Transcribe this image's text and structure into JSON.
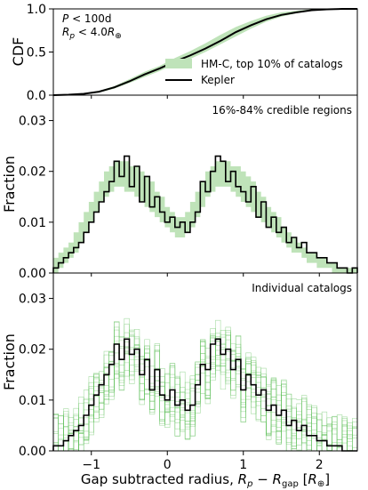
{
  "chart_data": [
    {
      "type": "line",
      "panel": "cdf",
      "ylabel": "CDF",
      "ylim": [
        0,
        1
      ],
      "yticks": [
        "0.0",
        "0.5",
        "1.0"
      ],
      "annotation_lines": [
        "P < 100d",
        "Rp < 4.0R⊕"
      ],
      "legend": {
        "position": "lower-right",
        "entries": [
          "HM-C, top 10% of catalogs",
          "Kepler"
        ]
      },
      "series": [
        {
          "name": "Kepler",
          "x": [
            -1.5,
            -1.3,
            -1.1,
            -0.9,
            -0.7,
            -0.5,
            -0.3,
            -0.1,
            0.0,
            0.1,
            0.3,
            0.5,
            0.7,
            0.9,
            1.1,
            1.3,
            1.5,
            1.7,
            1.9,
            2.1,
            2.3,
            2.5
          ],
          "y": [
            0.0,
            0.005,
            0.015,
            0.04,
            0.09,
            0.16,
            0.24,
            0.31,
            0.35,
            0.39,
            0.46,
            0.54,
            0.63,
            0.73,
            0.81,
            0.88,
            0.93,
            0.96,
            0.985,
            0.995,
            1.0,
            1.0
          ]
        },
        {
          "name": "HM-C, top 10% of catalogs",
          "band": true,
          "x": [
            -1.5,
            -1.3,
            -1.1,
            -0.9,
            -0.7,
            -0.5,
            -0.3,
            -0.1,
            0.0,
            0.1,
            0.3,
            0.5,
            0.7,
            0.9,
            1.1,
            1.3,
            1.5,
            1.7,
            1.9,
            2.1,
            2.3,
            2.5
          ],
          "lower": [
            0.0,
            0.002,
            0.01,
            0.03,
            0.075,
            0.14,
            0.21,
            0.28,
            0.32,
            0.35,
            0.42,
            0.5,
            0.59,
            0.68,
            0.77,
            0.85,
            0.91,
            0.95,
            0.98,
            0.99,
            1.0,
            1.0
          ],
          "upper": [
            0.0,
            0.008,
            0.022,
            0.05,
            0.105,
            0.185,
            0.27,
            0.34,
            0.385,
            0.43,
            0.51,
            0.6,
            0.7,
            0.79,
            0.86,
            0.92,
            0.96,
            0.98,
            0.995,
            1.0,
            1.0,
            1.0
          ]
        }
      ]
    },
    {
      "type": "area",
      "panel": "credible",
      "ylabel": "Fraction",
      "ylim": [
        0,
        0.035
      ],
      "yticks": [
        "0.00",
        "0.01",
        "0.02",
        "0.03"
      ],
      "annotation": "16%-84% credible regions",
      "kepler_bins": [
        0.001,
        0.002,
        0.003,
        0.004,
        0.005,
        0.006,
        0.008,
        0.01,
        0.012,
        0.014,
        0.016,
        0.018,
        0.022,
        0.019,
        0.023,
        0.017,
        0.021,
        0.014,
        0.019,
        0.013,
        0.015,
        0.012,
        0.01,
        0.011,
        0.009,
        0.01,
        0.008,
        0.01,
        0.012,
        0.018,
        0.016,
        0.02,
        0.023,
        0.022,
        0.018,
        0.02,
        0.017,
        0.016,
        0.014,
        0.017,
        0.011,
        0.014,
        0.009,
        0.011,
        0.008,
        0.009,
        0.006,
        0.007,
        0.005,
        0.006,
        0.004,
        0.004,
        0.003,
        0.003,
        0.002,
        0.002,
        0.001,
        0.001,
        0.0,
        0.001
      ],
      "band_lower": [
        0.0,
        0.001,
        0.002,
        0.003,
        0.004,
        0.006,
        0.008,
        0.01,
        0.012,
        0.014,
        0.015,
        0.016,
        0.017,
        0.017,
        0.016,
        0.016,
        0.015,
        0.014,
        0.013,
        0.012,
        0.011,
        0.01,
        0.009,
        0.008,
        0.007,
        0.007,
        0.008,
        0.009,
        0.011,
        0.013,
        0.015,
        0.016,
        0.017,
        0.017,
        0.017,
        0.016,
        0.015,
        0.014,
        0.013,
        0.012,
        0.011,
        0.01,
        0.009,
        0.008,
        0.007,
        0.006,
        0.005,
        0.004,
        0.004,
        0.003,
        0.002,
        0.002,
        0.001,
        0.001,
        0.001,
        0.0,
        0.0,
        0.0,
        0.0,
        0.0
      ],
      "band_upper": [
        0.003,
        0.004,
        0.005,
        0.006,
        0.008,
        0.01,
        0.012,
        0.014,
        0.016,
        0.018,
        0.02,
        0.021,
        0.022,
        0.022,
        0.022,
        0.021,
        0.021,
        0.02,
        0.019,
        0.018,
        0.016,
        0.015,
        0.013,
        0.012,
        0.011,
        0.011,
        0.012,
        0.014,
        0.016,
        0.018,
        0.02,
        0.021,
        0.022,
        0.022,
        0.022,
        0.021,
        0.021,
        0.02,
        0.019,
        0.018,
        0.016,
        0.015,
        0.013,
        0.012,
        0.011,
        0.009,
        0.008,
        0.007,
        0.006,
        0.005,
        0.004,
        0.004,
        0.003,
        0.003,
        0.002,
        0.002,
        0.001,
        0.001,
        0.001,
        0.001
      ]
    },
    {
      "type": "line",
      "panel": "catalogs",
      "ylabel": "Fraction",
      "xlabel": "Gap subtracted radius, Rp − Rgap [R⊕]",
      "xlim": [
        -1.5,
        2.5
      ],
      "ylim": [
        0,
        0.035
      ],
      "xticks": [
        "−1",
        "0",
        "1",
        "2"
      ],
      "yticks": [
        "0.00",
        "0.01",
        "0.02",
        "0.03"
      ],
      "annotation": "Individual catalogs",
      "catalog_count": 16,
      "kepler_bins": [
        0.001,
        0.001,
        0.002,
        0.003,
        0.004,
        0.005,
        0.007,
        0.009,
        0.011,
        0.013,
        0.015,
        0.017,
        0.021,
        0.018,
        0.022,
        0.019,
        0.02,
        0.015,
        0.018,
        0.012,
        0.016,
        0.011,
        0.01,
        0.012,
        0.009,
        0.01,
        0.008,
        0.009,
        0.013,
        0.017,
        0.016,
        0.021,
        0.022,
        0.019,
        0.02,
        0.016,
        0.018,
        0.012,
        0.015,
        0.013,
        0.011,
        0.012,
        0.008,
        0.009,
        0.007,
        0.008,
        0.005,
        0.006,
        0.004,
        0.005,
        0.003,
        0.003,
        0.002,
        0.002,
        0.001,
        0.001,
        0.001,
        0.0,
        0.0,
        0.0
      ]
    }
  ]
}
